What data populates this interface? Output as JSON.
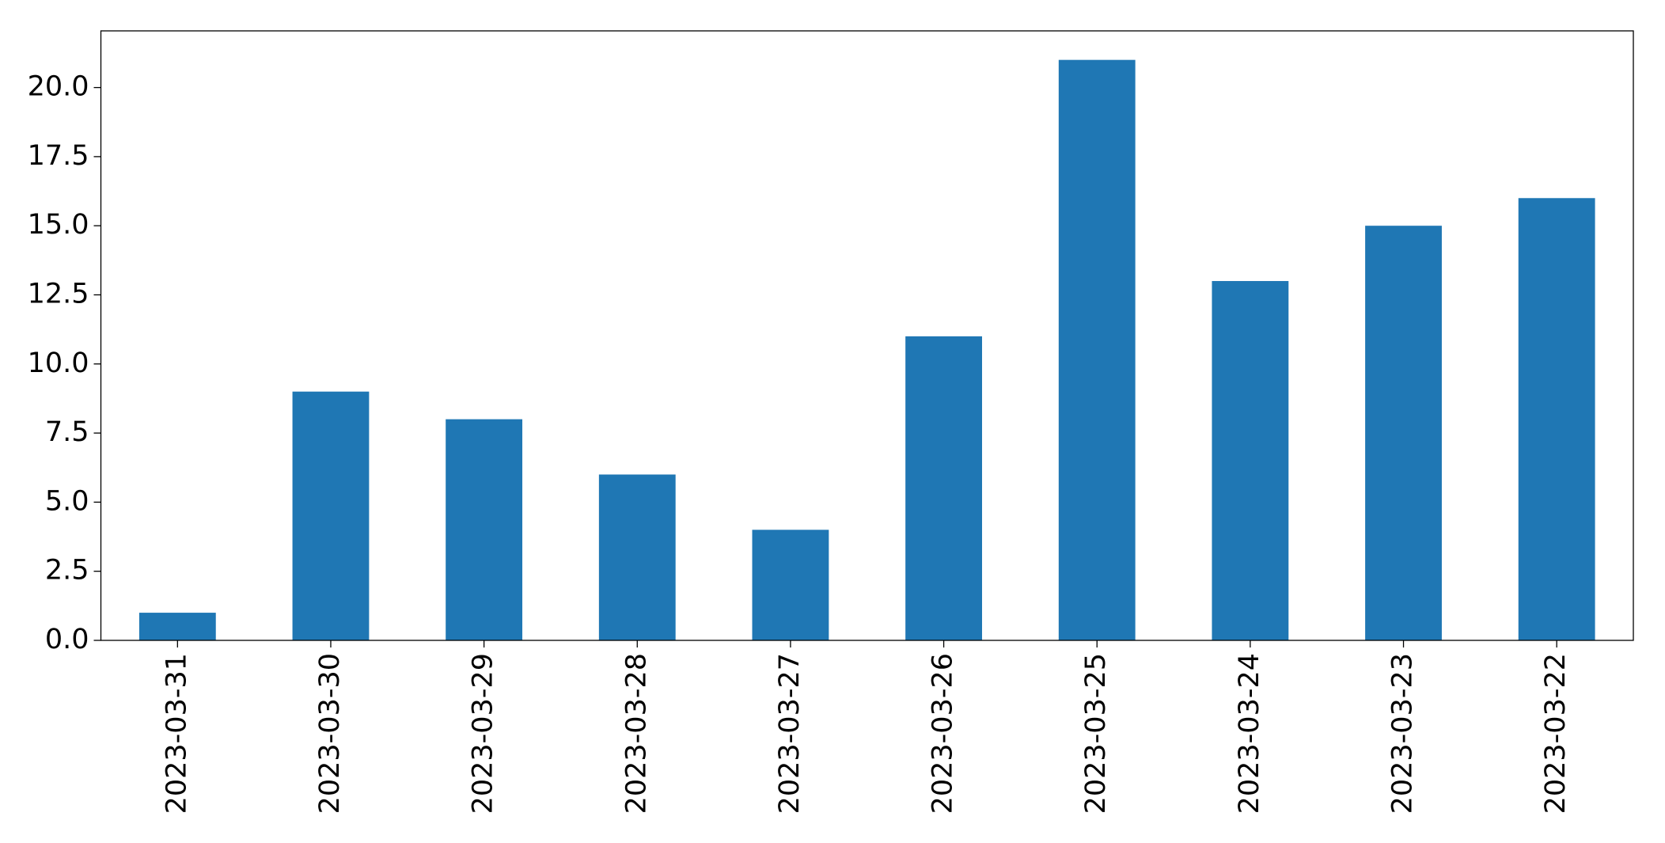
{
  "chart_data": {
    "type": "bar",
    "categories": [
      "2023-03-31",
      "2023-03-30",
      "2023-03-29",
      "2023-03-28",
      "2023-03-27",
      "2023-03-26",
      "2023-03-25",
      "2023-03-24",
      "2023-03-23",
      "2023-03-22"
    ],
    "values": [
      1,
      9,
      8,
      6,
      4,
      11,
      21,
      13,
      15,
      16
    ],
    "color": "#1f77b4",
    "ylim": [
      0,
      22.05
    ],
    "yticks": [
      {
        "value": 0,
        "label": "0.0"
      },
      {
        "value": 2.5,
        "label": "2.5"
      },
      {
        "value": 5,
        "label": "5.0"
      },
      {
        "value": 7.5,
        "label": "7.5"
      },
      {
        "value": 10,
        "label": "10.0"
      },
      {
        "value": 12.5,
        "label": "12.5"
      },
      {
        "value": 15,
        "label": "15.0"
      },
      {
        "value": 17.5,
        "label": "17.5"
      },
      {
        "value": 20,
        "label": "20.0"
      }
    ],
    "grid": false
  }
}
